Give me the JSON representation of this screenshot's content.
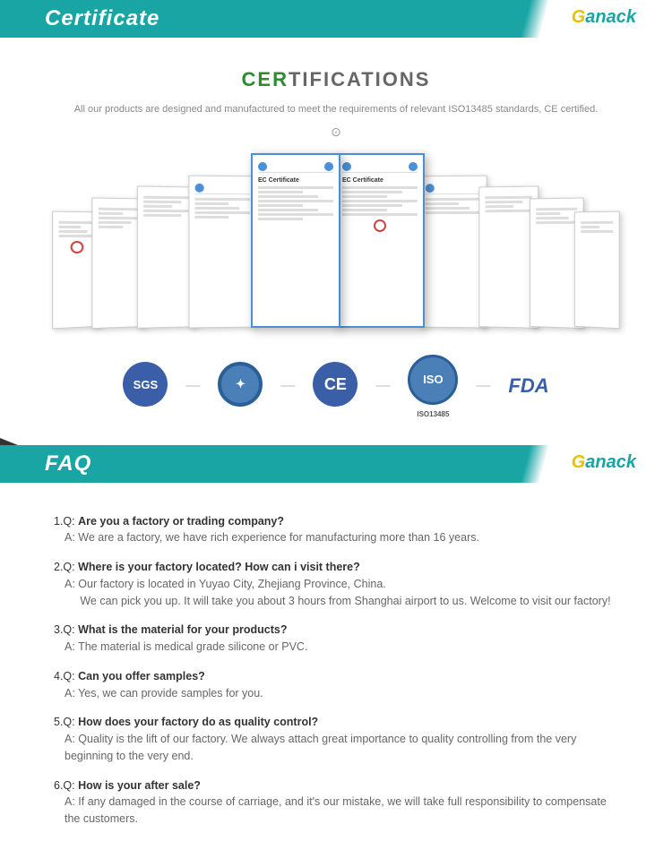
{
  "brand": {
    "g": "G",
    "rest": "anack"
  },
  "sections": {
    "certificate": {
      "title": "Certificate"
    },
    "faq": {
      "title": "FAQ"
    }
  },
  "certifications": {
    "title_cer": "CER",
    "title_rest": "TIFICATIONS",
    "subtitle": "All our products are designed and manufactured to meet the requirements of relevant ISO13485 standards, CE certified.",
    "badges": {
      "sgs": "SGS",
      "ce": "CE",
      "iso": "ISO",
      "iso_sub": "ISO13485",
      "fda": "FDA"
    }
  },
  "faq": [
    {
      "n": "1",
      "q": "Are you a factory or trading company?",
      "a": "We are a factory, we have rich experience for manufacturing more than 16 years."
    },
    {
      "n": "2",
      "q": "Where is your factory located? How can i visit there?",
      "a": "Our factory is located in Yuyao City, Zhejiang Province, China.\nWe can pick you up. It will take you about 3 hours from Shanghai airport to us. Welcome to visit our factory!"
    },
    {
      "n": "3",
      "q": "What is the material for your products?",
      "a": "The material is medical grade silicone or PVC."
    },
    {
      "n": "4",
      "q": "Can you offer samples?",
      "a": "Yes, we can provide samples for you."
    },
    {
      "n": "5",
      "q": "How does your factory do as quality control?",
      "a": "Quality is the lift of our factory. We always attach great importance to quality controlling from the very beginning to the very end."
    },
    {
      "n": "6",
      "q": "How is your after sale?",
      "a": "If any damaged in the course of carriage, and it's our mistake, we will take full responsibility to compensate the customers."
    }
  ],
  "colors": {
    "teal": "#1aa5a5",
    "green": "#2e8b2e",
    "blue": "#3a5fa8"
  }
}
